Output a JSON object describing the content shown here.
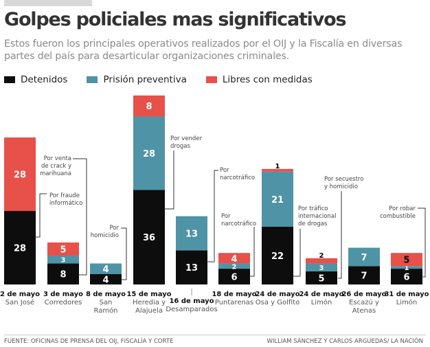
{
  "title": "Golpes policiales mas significativos",
  "subtitle": "Estos fueron los principales operativos realizados por el OIJ y la Fiscalía en diversas partes del país para desarticular organizaciones criminales.",
  "footer": {
    "source": "FUENTE: OFICINAS DE PRENSA DEL OIJ, FISCALÍA Y CORTE",
    "credit": "WILLIAM SÁNCHEZ Y CARLOS ARGUEDAS/ LA NACIÓN"
  },
  "chart_data": {
    "type": "bar",
    "stacked": true,
    "legend_placement": "top-left",
    "grid": false,
    "series": [
      {
        "name": "Detenidos",
        "color": "#0d0d0d",
        "values": [
          28,
          8,
          4,
          36,
          13,
          6,
          22,
          5,
          7,
          6
        ]
      },
      {
        "name": "Prisión preventiva",
        "color": "#4f93a6",
        "values": [
          0,
          3,
          4,
          28,
          13,
          2,
          21,
          3,
          7,
          1
        ]
      },
      {
        "name": "Libres con medidas",
        "color": "#e8504a",
        "values": [
          28,
          5,
          0,
          8,
          0,
          4,
          1,
          2,
          0,
          5
        ]
      }
    ],
    "categories": [
      {
        "date": "2 de mayo",
        "place": [
          "San José"
        ],
        "note": [
          "Por fraude",
          "informático"
        ]
      },
      {
        "date": "3 de mayo",
        "place": [
          "Corredores"
        ],
        "note": [
          "Por venta",
          "de crack y",
          "marihuana"
        ]
      },
      {
        "date": "8 de mayo",
        "place": [
          "San",
          "Ramón"
        ],
        "note": [
          "Por",
          "homicidio"
        ]
      },
      {
        "date": "15 de mayo",
        "place": [
          "Heredia y",
          "Alajuela"
        ],
        "note": [
          "Por vender",
          "drogas"
        ]
      },
      {
        "date": "16 de mayo",
        "place": [
          "Desamparados"
        ],
        "note": [
          "Por",
          "narcotráfico"
        ]
      },
      {
        "date": "18 de mayo",
        "place": [
          "Puntarenas"
        ],
        "note": [
          "Por",
          "narcotráfico"
        ]
      },
      {
        "date": "24 de mayo",
        "place": [
          "Osa y Golfito"
        ],
        "note": [
          "Por tráfico",
          "internacional",
          "de drogas"
        ]
      },
      {
        "date": "24 de mayo",
        "place": [
          "Limón"
        ],
        "note": [
          "Por secuestro",
          "y homicidio"
        ]
      },
      {
        "date": "26 de mayo",
        "place": [
          "Escazú y",
          "Atenas"
        ],
        "note": []
      },
      {
        "date": "31 de mayo",
        "place": [
          "Limón"
        ],
        "note": [
          "Por robar",
          "combustible"
        ]
      }
    ]
  }
}
